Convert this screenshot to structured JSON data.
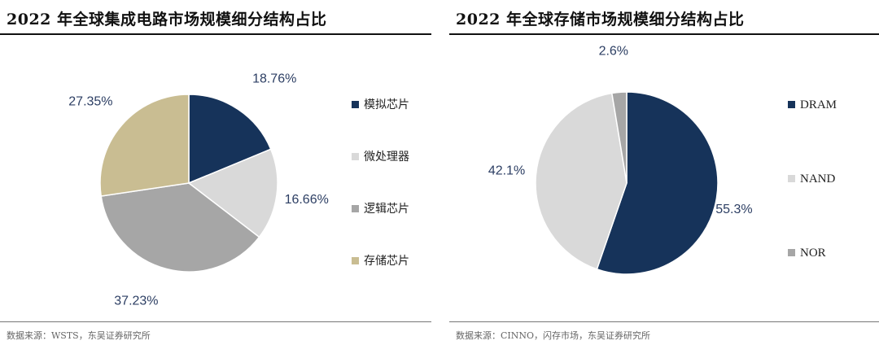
{
  "panels": [
    {
      "title": "2022 年全球集成电路市场规模细分结构占比",
      "source": "数据来源：WSTS，东吴证券研究所",
      "chart_data": {
        "type": "pie",
        "series": [
          {
            "name": "模拟芯片",
            "value": 18.76,
            "label": "18.76%",
            "color": "#16335a"
          },
          {
            "name": "微处理器",
            "value": 16.66,
            "label": "16.66%",
            "color": "#d9d9d9"
          },
          {
            "name": "逻辑芯片",
            "value": 37.23,
            "label": "37.23%",
            "color": "#a6a6a6"
          },
          {
            "name": "存储芯片",
            "value": 27.35,
            "label": "27.35%",
            "color": "#c9bd92"
          }
        ],
        "legend_position": "right"
      }
    },
    {
      "title": "2022 年全球存储市场规模细分结构占比",
      "source": "数据来源：CINNO，闪存市场，东吴证券研究所",
      "chart_data": {
        "type": "pie",
        "series": [
          {
            "name": "DRAM",
            "value": 55.3,
            "label": "55.3%",
            "color": "#16335a"
          },
          {
            "name": "NAND",
            "value": 42.1,
            "label": "42.1%",
            "color": "#d9d9d9"
          },
          {
            "name": "NOR",
            "value": 2.6,
            "label": "2.6%",
            "color": "#a6a6a6"
          }
        ],
        "legend_position": "right"
      }
    }
  ]
}
